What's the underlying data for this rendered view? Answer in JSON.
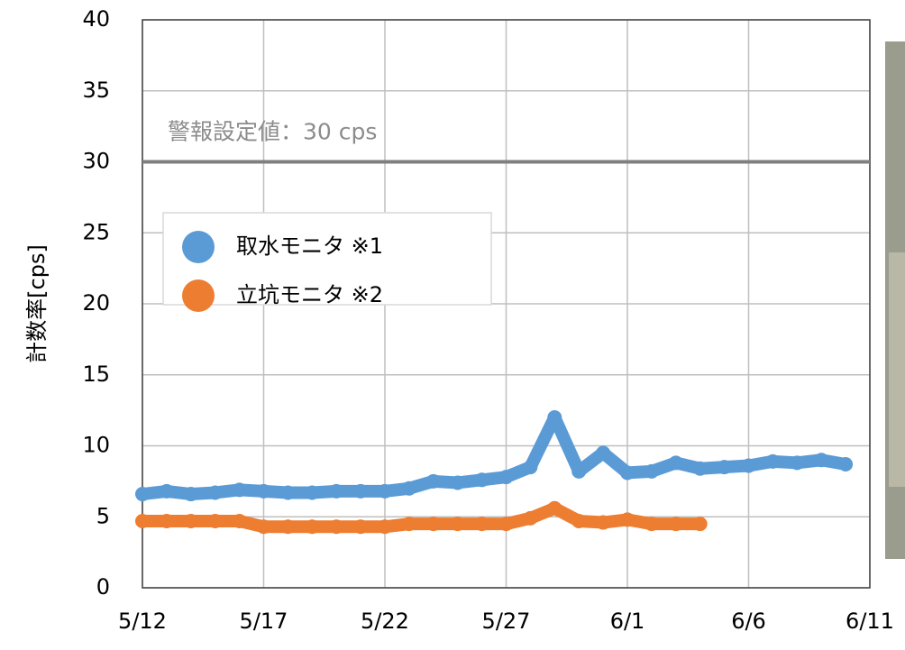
{
  "chart_data": {
    "type": "scatter",
    "y_label": "計数率[cps]",
    "annotation": "警報設定値：30 cps",
    "threshold": 30,
    "x": [
      "5/12",
      "5/13",
      "5/14",
      "5/15",
      "5/16",
      "5/17",
      "5/18",
      "5/19",
      "5/20",
      "5/21",
      "5/22",
      "5/23",
      "5/24",
      "5/25",
      "5/26",
      "5/27",
      "5/28",
      "5/29",
      "5/30",
      "5/31",
      "6/1",
      "6/2",
      "6/3",
      "6/4",
      "6/5",
      "6/6",
      "6/7",
      "6/8",
      "6/9",
      "6/10",
      "6/11"
    ],
    "xtick_every": 5,
    "series": [
      {
        "name": "取水モニタ ※1",
        "color": "#5b9bd5",
        "values": [
          6.6,
          6.8,
          6.6,
          6.7,
          6.9,
          6.8,
          6.7,
          6.7,
          6.8,
          6.8,
          6.8,
          7.0,
          7.5,
          7.4,
          7.6,
          7.8,
          8.5,
          12,
          8.2,
          9.5,
          8.1,
          8.2,
          8.8,
          8.4,
          8.5,
          8.6,
          8.9,
          8.8,
          9.0,
          8.7,
          null
        ]
      },
      {
        "name": "立坑モニタ ※2",
        "color": "#ed7d31",
        "values": [
          4.7,
          4.7,
          4.7,
          4.7,
          4.7,
          4.3,
          4.3,
          4.3,
          4.3,
          4.3,
          4.3,
          4.5,
          4.5,
          4.5,
          4.5,
          4.5,
          4.9,
          5.6,
          4.7,
          4.6,
          4.8,
          4.5,
          4.5,
          4.5,
          null,
          null,
          null,
          null,
          null,
          null,
          null
        ]
      }
    ],
    "ylim": [
      0,
      40
    ],
    "yticks": [
      0,
      5,
      10,
      15,
      20,
      25,
      30,
      35,
      40
    ],
    "grid": true
  }
}
